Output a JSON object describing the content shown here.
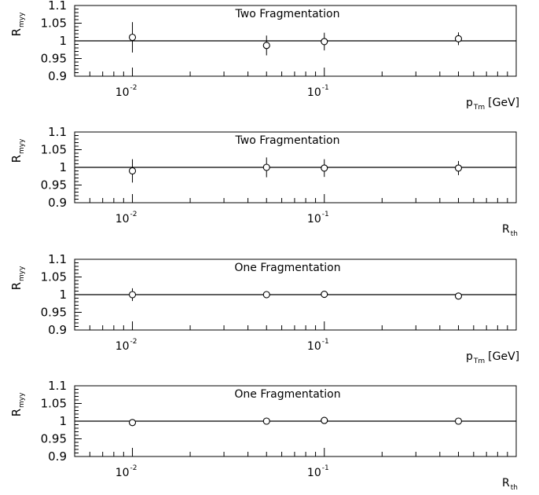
{
  "chart_data": [
    {
      "type": "scatter",
      "title": "Two Fragmentation",
      "ylabel_main": "R",
      "ylabel_sub": "myy",
      "xlabel_main": "p",
      "xlabel_sub": "Tm",
      "xlabel_unit": "[GeV]",
      "x_scale": "log",
      "xlim": [
        0.005,
        1
      ],
      "ylim": [
        0.9,
        1.1
      ],
      "yticks": [
        "0.9",
        "0.95",
        "1",
        "1.05",
        "1.1"
      ],
      "xticks": [
        {
          "base": "10",
          "exp": "-2",
          "value": 0.01
        },
        {
          "base": "10",
          "exp": "-1",
          "value": 0.1
        }
      ],
      "reference_line": 1,
      "grid": false,
      "points": [
        {
          "x": 0.01,
          "y": 1.01,
          "err": 0.043
        },
        {
          "x": 0.05,
          "y": 0.987,
          "err": 0.028
        },
        {
          "x": 0.1,
          "y": 0.998,
          "err": 0.025
        },
        {
          "x": 0.5,
          "y": 1.006,
          "err": 0.018
        }
      ]
    },
    {
      "type": "scatter",
      "title": "Two Fragmentation",
      "ylabel_main": "R",
      "ylabel_sub": "myy",
      "xlabel_main": "R",
      "xlabel_sub": "th",
      "xlabel_unit": "",
      "x_scale": "log",
      "xlim": [
        0.005,
        1
      ],
      "ylim": [
        0.9,
        1.1
      ],
      "yticks": [
        "0.9",
        "0.95",
        "1",
        "1.05",
        "1.1"
      ],
      "xticks": [
        {
          "base": "10",
          "exp": "-2",
          "value": 0.01
        },
        {
          "base": "10",
          "exp": "-1",
          "value": 0.1
        }
      ],
      "reference_line": 1,
      "grid": false,
      "points": [
        {
          "x": 0.01,
          "y": 0.99,
          "err": 0.033
        },
        {
          "x": 0.05,
          "y": 1.0,
          "err": 0.028
        },
        {
          "x": 0.1,
          "y": 0.998,
          "err": 0.025
        },
        {
          "x": 0.5,
          "y": 0.998,
          "err": 0.02
        }
      ]
    },
    {
      "type": "scatter",
      "title": "One Fragmentation",
      "ylabel_main": "R",
      "ylabel_sub": "myy",
      "xlabel_main": "p",
      "xlabel_sub": "Tm",
      "xlabel_unit": "[GeV]",
      "x_scale": "log",
      "xlim": [
        0.005,
        1
      ],
      "ylim": [
        0.9,
        1.1
      ],
      "yticks": [
        "0.9",
        "0.95",
        "1",
        "1.05",
        "1.1"
      ],
      "xticks": [
        {
          "base": "10",
          "exp": "-2",
          "value": 0.01
        },
        {
          "base": "10",
          "exp": "-1",
          "value": 0.1
        }
      ],
      "reference_line": 1,
      "grid": false,
      "points": [
        {
          "x": 0.01,
          "y": 1.0,
          "err": 0.018
        },
        {
          "x": 0.05,
          "y": 1.0,
          "err": 0.01
        },
        {
          "x": 0.1,
          "y": 1.001,
          "err": 0.006
        },
        {
          "x": 0.5,
          "y": 0.996,
          "err": 0.005
        }
      ]
    },
    {
      "type": "scatter",
      "title": "One Fragmentation",
      "ylabel_main": "R",
      "ylabel_sub": "myy",
      "xlabel_main": "R",
      "xlabel_sub": "th",
      "xlabel_unit": "",
      "x_scale": "log",
      "xlim": [
        0.005,
        1
      ],
      "ylim": [
        0.9,
        1.1
      ],
      "yticks": [
        "0.9",
        "0.95",
        "1",
        "1.05",
        "1.1"
      ],
      "xticks": [
        {
          "base": "10",
          "exp": "-2",
          "value": 0.01
        },
        {
          "base": "10",
          "exp": "-1",
          "value": 0.1
        }
      ],
      "reference_line": 1,
      "grid": false,
      "points": [
        {
          "x": 0.01,
          "y": 0.996,
          "err": 0.008
        },
        {
          "x": 0.05,
          "y": 1.0,
          "err": 0.004
        },
        {
          "x": 0.1,
          "y": 1.002,
          "err": 0.005
        },
        {
          "x": 0.5,
          "y": 1.0,
          "err": 0.004
        }
      ]
    }
  ]
}
